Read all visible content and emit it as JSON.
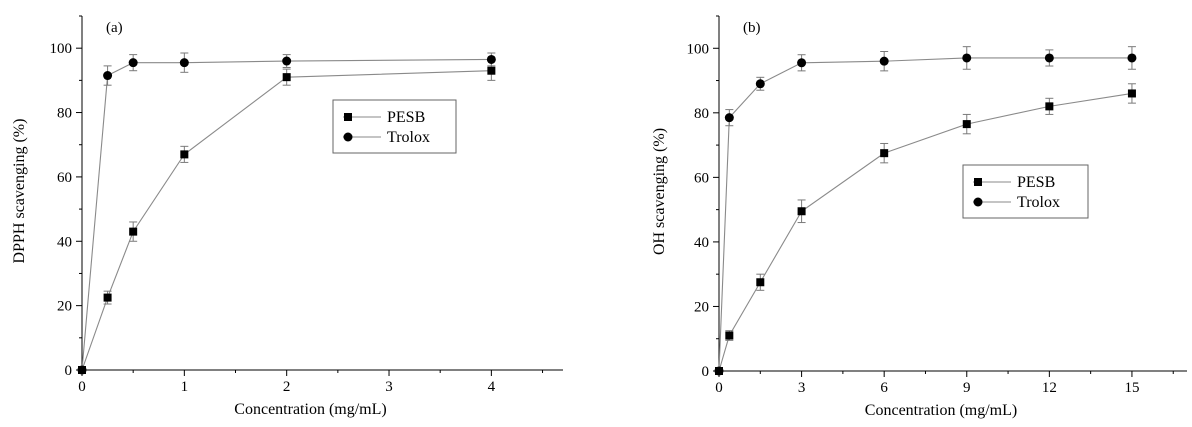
{
  "chart_data": [
    {
      "type": "line",
      "panel_label": "(a)",
      "xlabel": "Concentration (mg/mL)",
      "ylabel": "DPPH scavenging (%)",
      "xlim": [
        0,
        4.7
      ],
      "ylim": [
        0,
        110
      ],
      "xticks": [
        0,
        1,
        2,
        3,
        4
      ],
      "yticks": [
        0,
        20,
        40,
        60,
        80,
        100
      ],
      "legend_position": "center-right",
      "series": [
        {
          "name": "PESB",
          "marker": "square",
          "x": [
            0,
            0.25,
            0.5,
            1,
            2,
            4
          ],
          "y": [
            0,
            22.5,
            43,
            67,
            91,
            93
          ],
          "err": [
            0,
            2,
            3,
            2.5,
            2.5,
            3
          ]
        },
        {
          "name": "Trolox",
          "marker": "circle",
          "x": [
            0,
            0.25,
            0.5,
            1,
            2,
            4
          ],
          "y": [
            0,
            91.5,
            95.5,
            95.5,
            96,
            96.5
          ],
          "err": [
            0,
            3,
            2.5,
            3,
            2,
            2
          ]
        }
      ]
    },
    {
      "type": "line",
      "panel_label": "(b)",
      "xlabel": "Concentration (mg/mL)",
      "ylabel": "OH scavenging (%)",
      "xlim": [
        0,
        17
      ],
      "ylim": [
        0,
        110
      ],
      "xticks": [
        0,
        3,
        6,
        9,
        12,
        15
      ],
      "yticks": [
        0,
        20,
        40,
        60,
        80,
        100
      ],
      "legend_position": "center-right",
      "series": [
        {
          "name": "PESB",
          "marker": "square",
          "x": [
            0,
            0.375,
            1.5,
            3,
            6,
            9,
            12,
            15
          ],
          "y": [
            0,
            11,
            27.5,
            49.5,
            67.5,
            76.5,
            82,
            86
          ],
          "err": [
            0,
            1.5,
            2.5,
            3.5,
            3,
            3,
            2.5,
            3
          ]
        },
        {
          "name": "Trolox",
          "marker": "circle",
          "x": [
            0,
            0.375,
            1.5,
            3,
            6,
            9,
            12,
            15
          ],
          "y": [
            0,
            78.5,
            89,
            95.5,
            96,
            97,
            97,
            97
          ],
          "err": [
            0,
            2.5,
            2,
            2.5,
            3,
            3.5,
            2.5,
            3.5
          ]
        }
      ]
    }
  ]
}
